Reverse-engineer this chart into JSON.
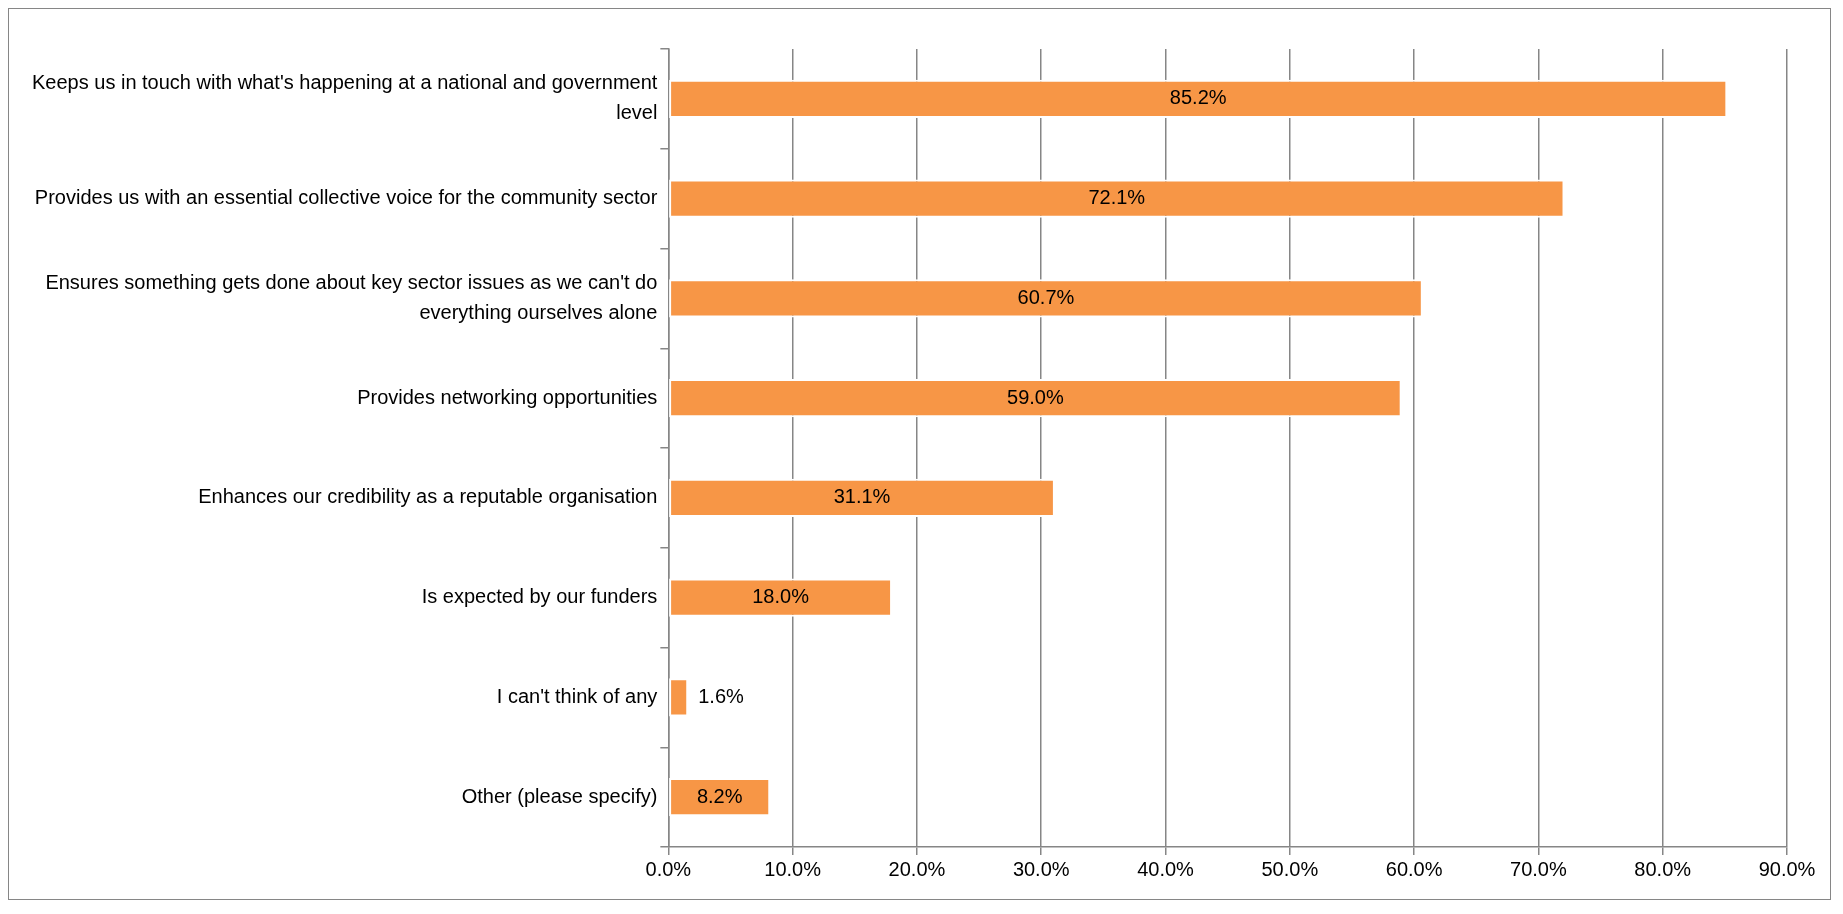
{
  "chart_data": {
    "type": "bar",
    "orientation": "horizontal",
    "categories": [
      "Keeps us in touch with what's happening at a national and government level",
      "Provides us with an essential collective voice for the community sector",
      "Ensures something gets done about key sector issues as we can't do everything ourselves alone",
      "Provides networking opportunities",
      "Enhances our credibility as a reputable organisation",
      "Is expected by our funders",
      "I can't think of any",
      "Other (please specify)"
    ],
    "values": [
      85.2,
      72.1,
      60.7,
      59.0,
      31.1,
      18.0,
      1.6,
      8.2
    ],
    "value_labels": [
      "85.2%",
      "72.1%",
      "60.7%",
      "59.0%",
      "31.1%",
      "18.0%",
      "1.6%",
      "8.2%"
    ],
    "color": "#f79646",
    "xlim": [
      0,
      90
    ],
    "xticks": [
      {
        "value": 0,
        "label": "0.0%"
      },
      {
        "value": 10,
        "label": "10.0%"
      },
      {
        "value": 20,
        "label": "20.0%"
      },
      {
        "value": 30,
        "label": "30.0%"
      },
      {
        "value": 40,
        "label": "40.0%"
      },
      {
        "value": 50,
        "label": "50.0%"
      },
      {
        "value": 60,
        "label": "60.0%"
      },
      {
        "value": 70,
        "label": "70.0%"
      },
      {
        "value": 80,
        "label": "80.0%"
      },
      {
        "value": 90,
        "label": "90.0%"
      }
    ],
    "grid": "x",
    "legend": false
  }
}
